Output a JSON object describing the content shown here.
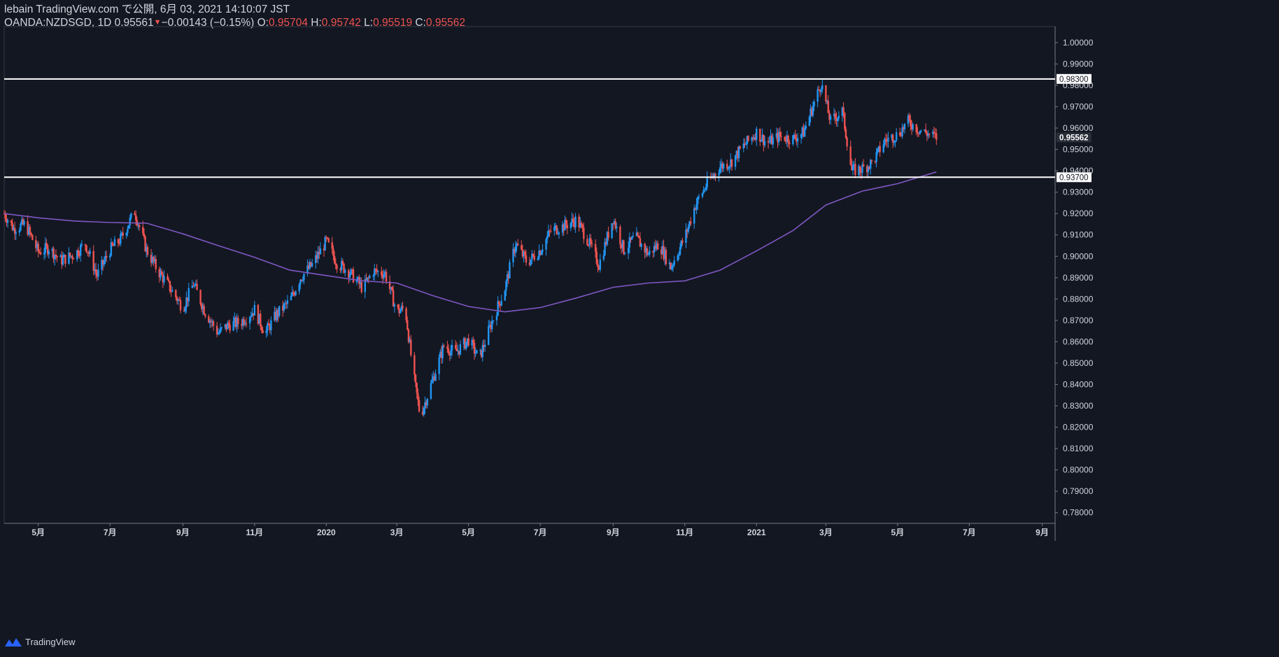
{
  "header": {
    "published_line": "lebain TradingView.com で公開, 6月 03, 2021 14:10:07 JST",
    "symbol": "OANDA:NZDSGD, 1D",
    "last": "0.95561",
    "change": "−0.00143 (−0.15%)",
    "o_label": "O:",
    "o_value": "0.95704",
    "h_label": "H:",
    "h_value": "0.95742",
    "l_label": "L:",
    "l_value": "0.95519",
    "c_label": "C:",
    "c_value": "0.95562"
  },
  "footer": {
    "brand": "TradingView"
  },
  "colors": {
    "background": "#131722",
    "up": "#2196f3",
    "down": "#ef5350",
    "ma": "#7e57c2",
    "hline": "#ffffff",
    "axis_text": "#d1d4dc"
  },
  "chart_data": {
    "type": "candlestick",
    "symbol": "OANDA:NZDSGD",
    "timeframe": "1D",
    "ylim": [
      0.775,
      1.0075
    ],
    "y_ticks": [
      "1.00000",
      "0.99000",
      "0.98000",
      "0.97000",
      "0.96000",
      "0.95000",
      "0.94000",
      "0.93000",
      "0.92000",
      "0.91000",
      "0.90000",
      "0.89000",
      "0.88000",
      "0.87000",
      "0.86000",
      "0.85000",
      "0.84000",
      "0.83000",
      "0.82000",
      "0.81000",
      "0.80000",
      "0.79000",
      "0.78000"
    ],
    "x_ticks": [
      {
        "label": "5月",
        "date": "2019-05-01"
      },
      {
        "label": "7月",
        "date": "2019-07-01"
      },
      {
        "label": "9月",
        "date": "2019-09-01"
      },
      {
        "label": "11月",
        "date": "2019-11-01"
      },
      {
        "label": "2020",
        "date": "2020-01-01"
      },
      {
        "label": "3月",
        "date": "2020-03-01"
      },
      {
        "label": "5月",
        "date": "2020-05-01"
      },
      {
        "label": "7月",
        "date": "2020-07-01"
      },
      {
        "label": "9月",
        "date": "2020-09-01"
      },
      {
        "label": "11月",
        "date": "2020-11-01"
      },
      {
        "label": "2021",
        "date": "2021-01-01"
      },
      {
        "label": "3月",
        "date": "2021-03-01"
      },
      {
        "label": "5月",
        "date": "2021-05-01"
      },
      {
        "label": "7月",
        "date": "2021-07-01"
      },
      {
        "label": "9月",
        "date": "2021-09-01"
      }
    ],
    "x_range": [
      "2019-04-02",
      "2021-09-12"
    ],
    "horizontal_lines": [
      {
        "value": 0.983,
        "label": "0.98300"
      },
      {
        "value": 0.937,
        "label": "0.93700"
      }
    ],
    "last_price": {
      "value": 0.95562,
      "label": "0.95562"
    },
    "closes": [
      {
        "date": "2019-04-02",
        "close": 0.92
      },
      {
        "date": "2019-04-10",
        "close": 0.913
      },
      {
        "date": "2019-04-20",
        "close": 0.915
      },
      {
        "date": "2019-05-01",
        "close": 0.902
      },
      {
        "date": "2019-05-10",
        "close": 0.904
      },
      {
        "date": "2019-05-20",
        "close": 0.898
      },
      {
        "date": "2019-06-01",
        "close": 0.901
      },
      {
        "date": "2019-06-10",
        "close": 0.906
      },
      {
        "date": "2019-06-20",
        "close": 0.891
      },
      {
        "date": "2019-07-01",
        "close": 0.903
      },
      {
        "date": "2019-07-10",
        "close": 0.908
      },
      {
        "date": "2019-07-22",
        "close": 0.921
      },
      {
        "date": "2019-08-01",
        "close": 0.903
      },
      {
        "date": "2019-08-10",
        "close": 0.894
      },
      {
        "date": "2019-08-20",
        "close": 0.886
      },
      {
        "date": "2019-09-01",
        "close": 0.876
      },
      {
        "date": "2019-09-10",
        "close": 0.887
      },
      {
        "date": "2019-09-20",
        "close": 0.874
      },
      {
        "date": "2019-10-01",
        "close": 0.864
      },
      {
        "date": "2019-10-10",
        "close": 0.868
      },
      {
        "date": "2019-10-20",
        "close": 0.869
      },
      {
        "date": "2019-11-01",
        "close": 0.875
      },
      {
        "date": "2019-11-10",
        "close": 0.864
      },
      {
        "date": "2019-11-20",
        "close": 0.873
      },
      {
        "date": "2019-12-01",
        "close": 0.879
      },
      {
        "date": "2019-12-10",
        "close": 0.89
      },
      {
        "date": "2019-12-20",
        "close": 0.896
      },
      {
        "date": "2020-01-01",
        "close": 0.907
      },
      {
        "date": "2020-01-10",
        "close": 0.897
      },
      {
        "date": "2020-01-20",
        "close": 0.893
      },
      {
        "date": "2020-02-01",
        "close": 0.885
      },
      {
        "date": "2020-02-10",
        "close": 0.893
      },
      {
        "date": "2020-02-20",
        "close": 0.892
      },
      {
        "date": "2020-03-01",
        "close": 0.874
      },
      {
        "date": "2020-03-08",
        "close": 0.876
      },
      {
        "date": "2020-03-15",
        "close": 0.845
      },
      {
        "date": "2020-03-21",
        "close": 0.825
      },
      {
        "date": "2020-04-01",
        "close": 0.843
      },
      {
        "date": "2020-04-10",
        "close": 0.858
      },
      {
        "date": "2020-04-20",
        "close": 0.855
      },
      {
        "date": "2020-05-01",
        "close": 0.861
      },
      {
        "date": "2020-05-10",
        "close": 0.852
      },
      {
        "date": "2020-05-20",
        "close": 0.868
      },
      {
        "date": "2020-06-01",
        "close": 0.885
      },
      {
        "date": "2020-06-10",
        "close": 0.906
      },
      {
        "date": "2020-06-20",
        "close": 0.897
      },
      {
        "date": "2020-07-01",
        "close": 0.903
      },
      {
        "date": "2020-07-10",
        "close": 0.912
      },
      {
        "date": "2020-07-20",
        "close": 0.914
      },
      {
        "date": "2020-08-01",
        "close": 0.917
      },
      {
        "date": "2020-08-10",
        "close": 0.908
      },
      {
        "date": "2020-08-20",
        "close": 0.896
      },
      {
        "date": "2020-09-01",
        "close": 0.918
      },
      {
        "date": "2020-09-10",
        "close": 0.903
      },
      {
        "date": "2020-09-20",
        "close": 0.909
      },
      {
        "date": "2020-10-01",
        "close": 0.901
      },
      {
        "date": "2020-10-10",
        "close": 0.906
      },
      {
        "date": "2020-10-20",
        "close": 0.895
      },
      {
        "date": "2020-11-01",
        "close": 0.909
      },
      {
        "date": "2020-11-10",
        "close": 0.924
      },
      {
        "date": "2020-11-20",
        "close": 0.934
      },
      {
        "date": "2020-12-01",
        "close": 0.942
      },
      {
        "date": "2020-12-10",
        "close": 0.944
      },
      {
        "date": "2020-12-20",
        "close": 0.951
      },
      {
        "date": "2021-01-01",
        "close": 0.958
      },
      {
        "date": "2021-01-10",
        "close": 0.953
      },
      {
        "date": "2021-01-20",
        "close": 0.956
      },
      {
        "date": "2021-02-01",
        "close": 0.955
      },
      {
        "date": "2021-02-10",
        "close": 0.958
      },
      {
        "date": "2021-02-25",
        "close": 0.981
      },
      {
        "date": "2021-03-05",
        "close": 0.963
      },
      {
        "date": "2021-03-15",
        "close": 0.968
      },
      {
        "date": "2021-03-23",
        "close": 0.94
      },
      {
        "date": "2021-04-01",
        "close": 0.941
      },
      {
        "date": "2021-04-10",
        "close": 0.944
      },
      {
        "date": "2021-04-20",
        "close": 0.954
      },
      {
        "date": "2021-05-01",
        "close": 0.957
      },
      {
        "date": "2021-05-10",
        "close": 0.963
      },
      {
        "date": "2021-05-20",
        "close": 0.959
      },
      {
        "date": "2021-06-03",
        "close": 0.9556
      }
    ],
    "moving_average": [
      {
        "date": "2019-04-02",
        "value": 0.92
      },
      {
        "date": "2019-05-01",
        "value": 0.918
      },
      {
        "date": "2019-06-01",
        "value": 0.9165
      },
      {
        "date": "2019-07-01",
        "value": 0.9158
      },
      {
        "date": "2019-08-01",
        "value": 0.9155
      },
      {
        "date": "2019-09-01",
        "value": 0.9105
      },
      {
        "date": "2019-10-01",
        "value": 0.905
      },
      {
        "date": "2019-11-01",
        "value": 0.8995
      },
      {
        "date": "2019-12-01",
        "value": 0.8935
      },
      {
        "date": "2020-01-01",
        "value": 0.891
      },
      {
        "date": "2020-02-01",
        "value": 0.8885
      },
      {
        "date": "2020-03-01",
        "value": 0.8875
      },
      {
        "date": "2020-04-01",
        "value": 0.8815
      },
      {
        "date": "2020-05-01",
        "value": 0.8765
      },
      {
        "date": "2020-06-01",
        "value": 0.874
      },
      {
        "date": "2020-07-01",
        "value": 0.876
      },
      {
        "date": "2020-08-01",
        "value": 0.8805
      },
      {
        "date": "2020-09-01",
        "value": 0.8855
      },
      {
        "date": "2020-10-01",
        "value": 0.8875
      },
      {
        "date": "2020-11-01",
        "value": 0.8885
      },
      {
        "date": "2020-12-01",
        "value": 0.8935
      },
      {
        "date": "2021-01-01",
        "value": 0.9025
      },
      {
        "date": "2021-02-01",
        "value": 0.912
      },
      {
        "date": "2021-03-01",
        "value": 0.924
      },
      {
        "date": "2021-04-01",
        "value": 0.9305
      },
      {
        "date": "2021-05-01",
        "value": 0.934
      },
      {
        "date": "2021-06-03",
        "value": 0.9395
      }
    ]
  }
}
